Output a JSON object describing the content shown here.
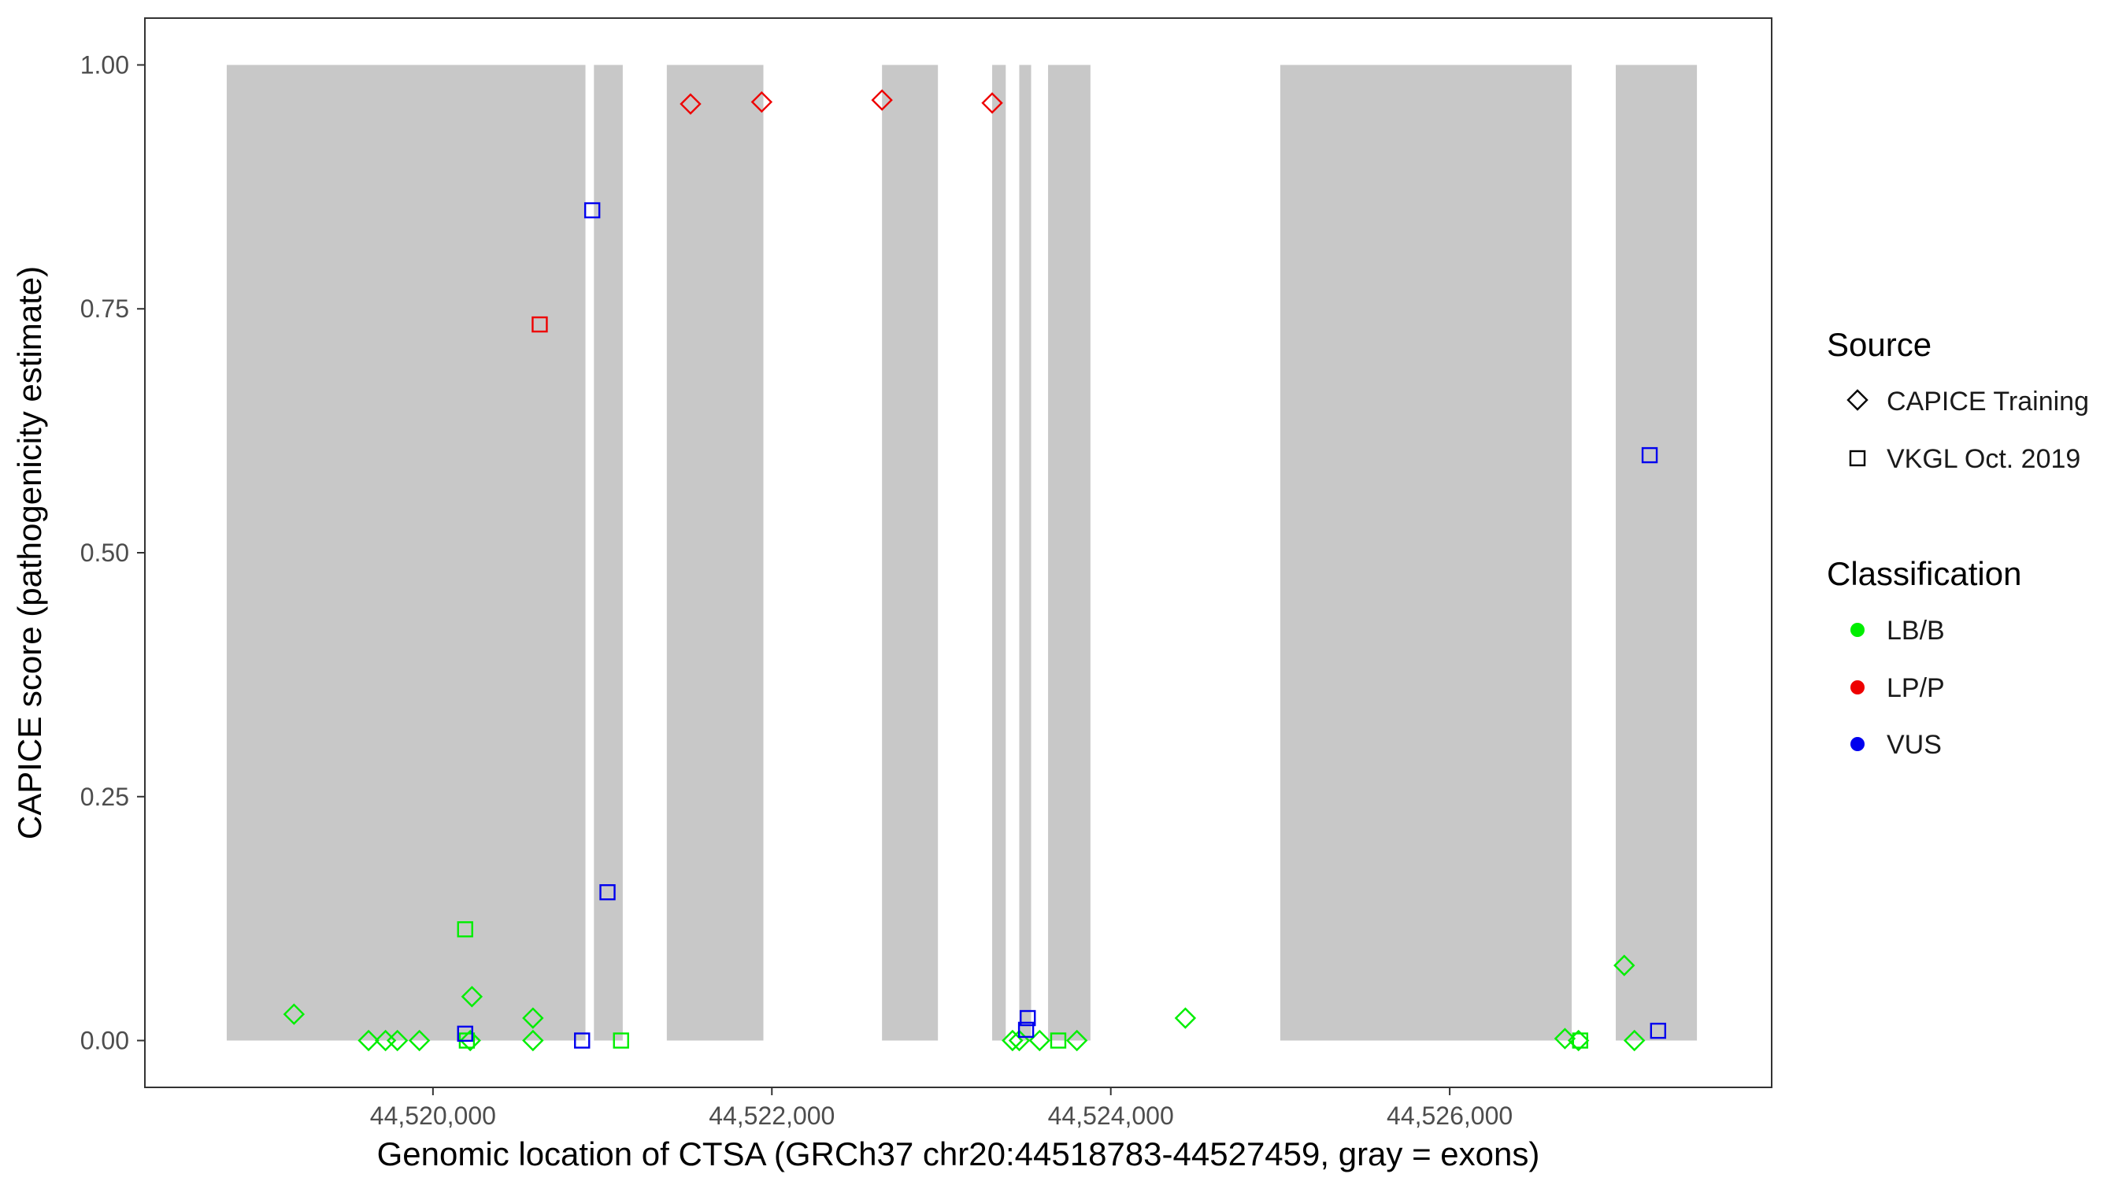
{
  "chart_data": {
    "type": "scatter",
    "xlabel": "Genomic location of CTSA (GRCh37 chr20:44518783-44527459, gray = exons)",
    "ylabel": "CAPICE score (pathogenicity estimate)",
    "xlim": [
      44518300,
      44527900
    ],
    "ylim": [
      -0.048,
      1.048
    ],
    "x_ticks": [
      44520000,
      44522000,
      44524000,
      44526000
    ],
    "x_tick_labels": [
      "44,520,000",
      "44,522,000",
      "44,524,000",
      "44,526,000"
    ],
    "y_ticks": [
      0,
      0.25,
      0.5,
      0.75,
      1.0
    ],
    "y_tick_labels": [
      "0.00",
      "0.25",
      "0.50",
      "0.75",
      "1.00"
    ],
    "grid": false,
    "exon_color": "#c8c8c8",
    "exons": [
      [
        44518783,
        44520900
      ],
      [
        44520950,
        44521120
      ],
      [
        44521380,
        44521950
      ],
      [
        44522650,
        44522980
      ],
      [
        44523300,
        44523380
      ],
      [
        44523460,
        44523530
      ],
      [
        44523630,
        44523880
      ],
      [
        44525000,
        44526720
      ],
      [
        44526980,
        44527459
      ]
    ],
    "legend": {
      "placement": "right",
      "source_title": "Source",
      "source_entries": [
        {
          "label": "CAPICE Training",
          "shape": "diamond"
        },
        {
          "label": "VKGL Oct. 2019",
          "shape": "square"
        }
      ],
      "class_title": "Classification",
      "class_entries": [
        {
          "label": "LB/B",
          "color": "#00ee00"
        },
        {
          "label": "LP/P",
          "color": "#ee0000"
        },
        {
          "label": "VUS",
          "color": "#0000ee"
        }
      ]
    },
    "colors": {
      "LB/B": "#00ee00",
      "LP/P": "#ee0000",
      "VUS": "#0000ee"
    },
    "points": [
      {
        "x": 44519180,
        "y": 0.027,
        "source": "CAPICE Training",
        "class": "LB/B"
      },
      {
        "x": 44519620,
        "y": 0.0,
        "source": "CAPICE Training",
        "class": "LB/B"
      },
      {
        "x": 44519720,
        "y": 0.0,
        "source": "CAPICE Training",
        "class": "LB/B"
      },
      {
        "x": 44519790,
        "y": 0.0,
        "source": "CAPICE Training",
        "class": "LB/B"
      },
      {
        "x": 44519920,
        "y": 0.0,
        "source": "CAPICE Training",
        "class": "LB/B"
      },
      {
        "x": 44520230,
        "y": 0.045,
        "source": "CAPICE Training",
        "class": "LB/B"
      },
      {
        "x": 44520220,
        "y": 0.0,
        "source": "CAPICE Training",
        "class": "LB/B"
      },
      {
        "x": 44520590,
        "y": 0.023,
        "source": "CAPICE Training",
        "class": "LB/B"
      },
      {
        "x": 44520590,
        "y": 0.0,
        "source": "CAPICE Training",
        "class": "LB/B"
      },
      {
        "x": 44520190,
        "y": 0.114,
        "source": "VKGL Oct. 2019",
        "class": "LB/B"
      },
      {
        "x": 44520200,
        "y": 0.0,
        "source": "VKGL Oct. 2019",
        "class": "LB/B"
      },
      {
        "x": 44520190,
        "y": 0.007,
        "source": "VKGL Oct. 2019",
        "class": "VUS"
      },
      {
        "x": 44520630,
        "y": 0.734,
        "source": "VKGL Oct. 2019",
        "class": "LP/P"
      },
      {
        "x": 44520880,
        "y": 0.0,
        "source": "VKGL Oct. 2019",
        "class": "VUS"
      },
      {
        "x": 44520940,
        "y": 0.851,
        "source": "VKGL Oct. 2019",
        "class": "VUS"
      },
      {
        "x": 44521030,
        "y": 0.152,
        "source": "VKGL Oct. 2019",
        "class": "VUS"
      },
      {
        "x": 44521110,
        "y": 0.0,
        "source": "VKGL Oct. 2019",
        "class": "LB/B"
      },
      {
        "x": 44521520,
        "y": 0.96,
        "source": "CAPICE Training",
        "class": "LP/P"
      },
      {
        "x": 44521940,
        "y": 0.962,
        "source": "CAPICE Training",
        "class": "LP/P"
      },
      {
        "x": 44522650,
        "y": 0.964,
        "source": "CAPICE Training",
        "class": "LP/P"
      },
      {
        "x": 44523300,
        "y": 0.961,
        "source": "CAPICE Training",
        "class": "LP/P"
      },
      {
        "x": 44523420,
        "y": 0.0,
        "source": "CAPICE Training",
        "class": "LB/B"
      },
      {
        "x": 44523460,
        "y": 0.0,
        "source": "CAPICE Training",
        "class": "LB/B"
      },
      {
        "x": 44523580,
        "y": 0.0,
        "source": "CAPICE Training",
        "class": "LB/B"
      },
      {
        "x": 44523800,
        "y": 0.0,
        "source": "CAPICE Training",
        "class": "LB/B"
      },
      {
        "x": 44523690,
        "y": 0.0,
        "source": "VKGL Oct. 2019",
        "class": "LB/B"
      },
      {
        "x": 44523510,
        "y": 0.023,
        "source": "VKGL Oct. 2019",
        "class": "VUS"
      },
      {
        "x": 44523500,
        "y": 0.011,
        "source": "VKGL Oct. 2019",
        "class": "VUS"
      },
      {
        "x": 44524440,
        "y": 0.023,
        "source": "CAPICE Training",
        "class": "LB/B"
      },
      {
        "x": 44526680,
        "y": 0.002,
        "source": "CAPICE Training",
        "class": "LB/B"
      },
      {
        "x": 44526760,
        "y": 0.0,
        "source": "CAPICE Training",
        "class": "LB/B"
      },
      {
        "x": 44526770,
        "y": 0.0,
        "source": "VKGL Oct. 2019",
        "class": "LB/B"
      },
      {
        "x": 44527030,
        "y": 0.077,
        "source": "CAPICE Training",
        "class": "LB/B"
      },
      {
        "x": 44527090,
        "y": 0.0,
        "source": "CAPICE Training",
        "class": "LB/B"
      },
      {
        "x": 44527180,
        "y": 0.6,
        "source": "VKGL Oct. 2019",
        "class": "VUS"
      },
      {
        "x": 44527230,
        "y": 0.01,
        "source": "VKGL Oct. 2019",
        "class": "VUS"
      }
    ]
  }
}
